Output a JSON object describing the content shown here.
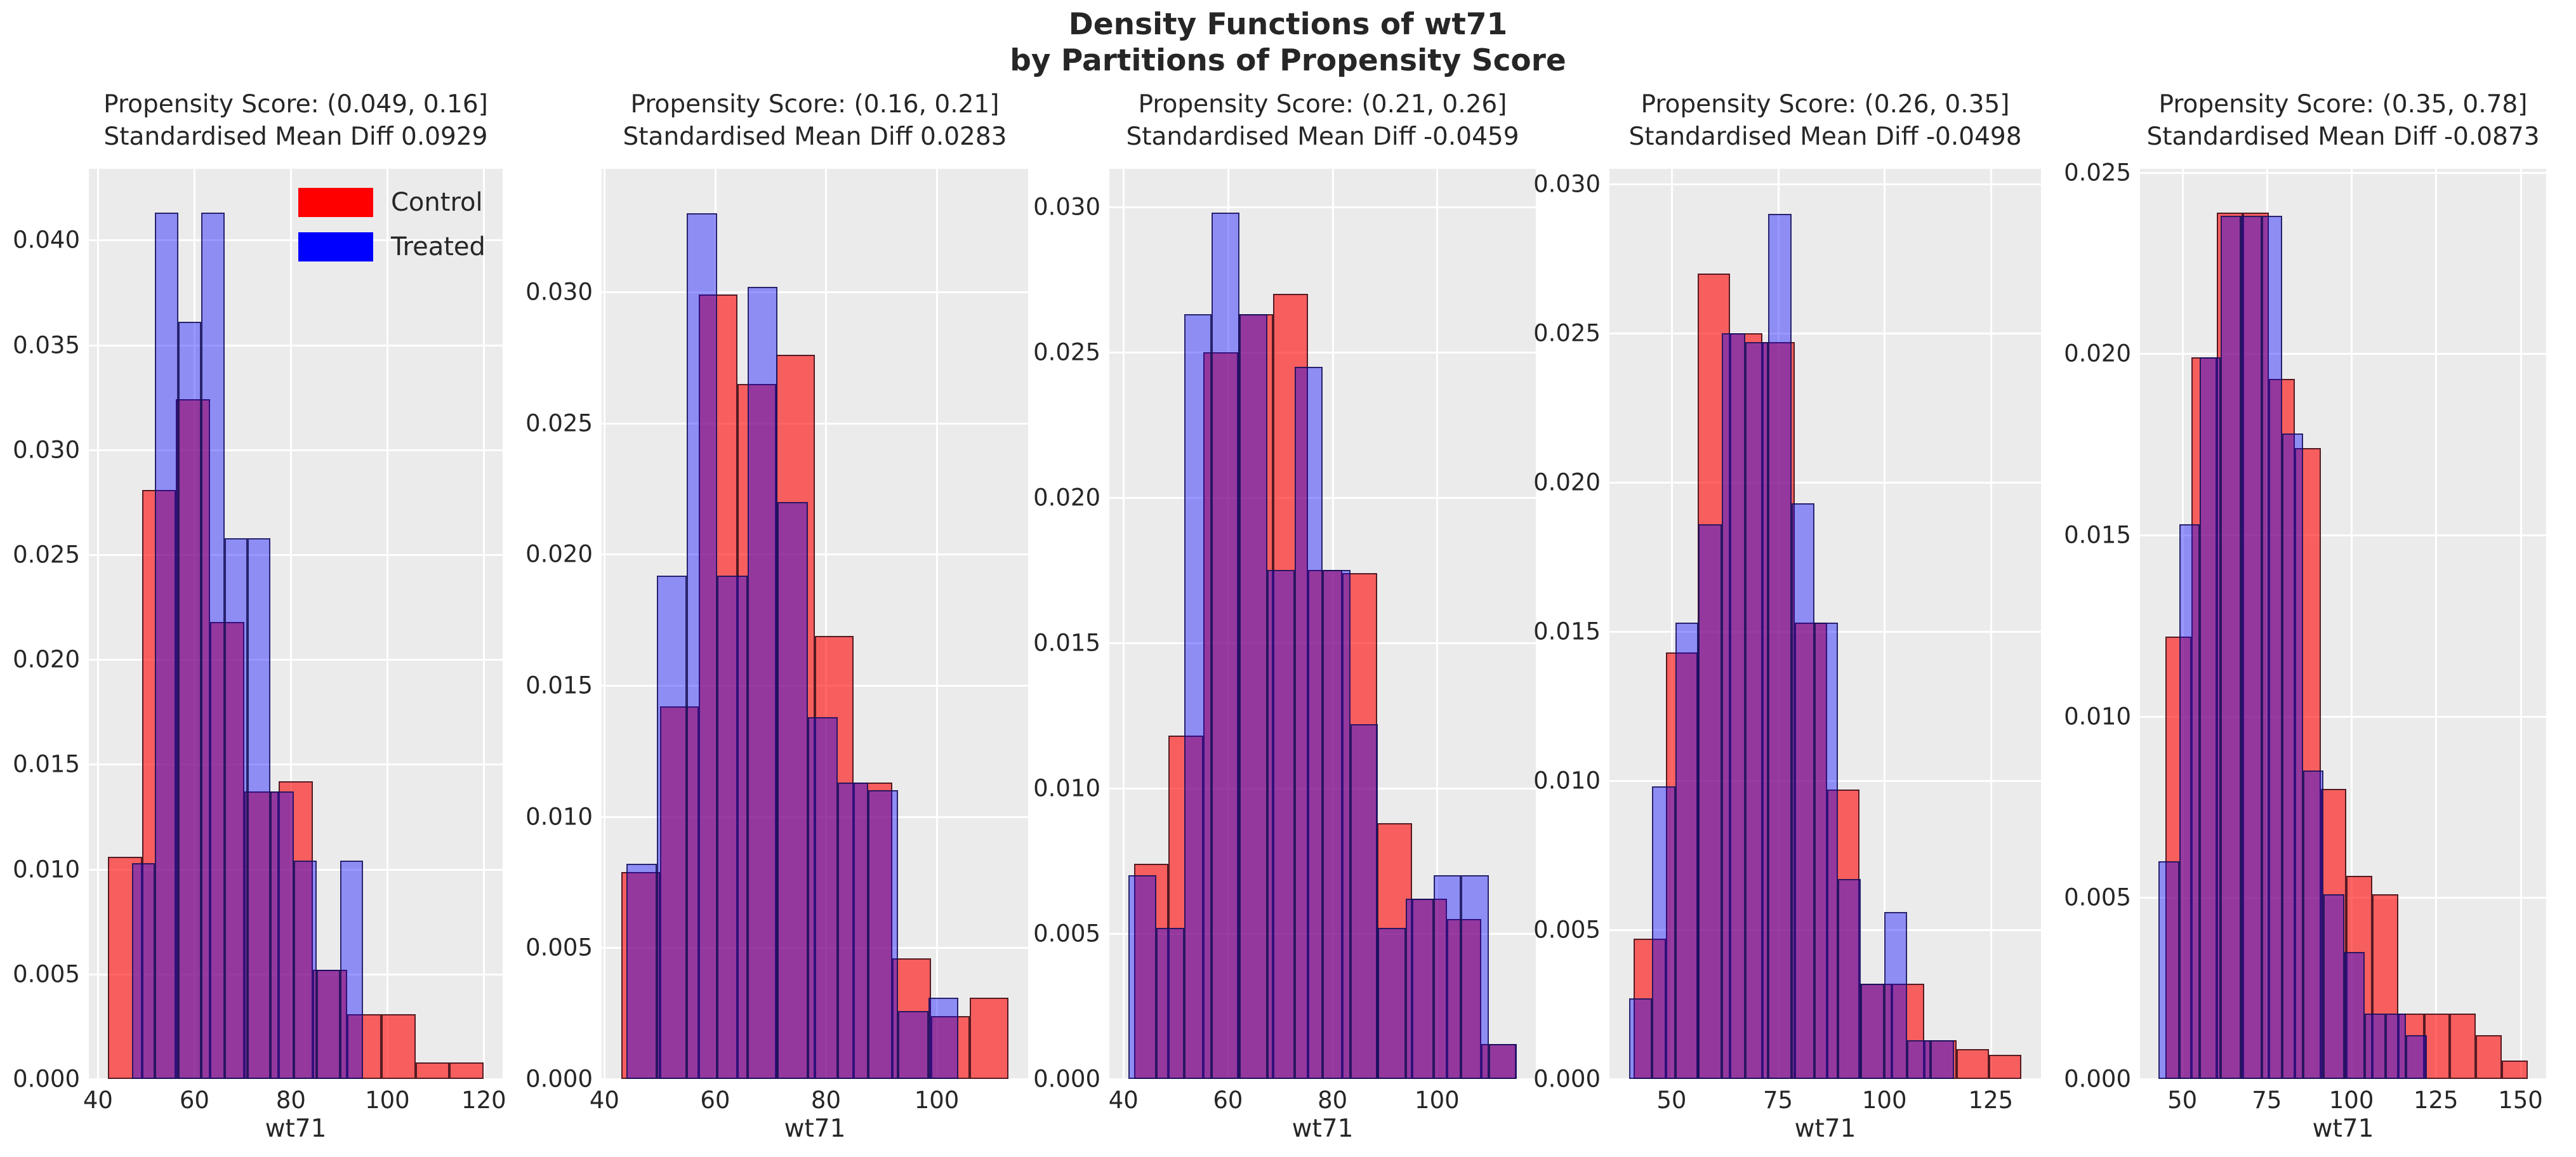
{
  "figure": {
    "title_line1": "Density Functions of wt71",
    "title_line2": "by Partitions of Propensity Score",
    "background": "#ffffff",
    "axes_background": "#ebebeb",
    "grid_color": "#ffffff",
    "text_color": "#262626"
  },
  "legend": {
    "items": [
      {
        "label": "Control",
        "color": "#ff0000"
      },
      {
        "label": "Treated",
        "color": "#0000ff"
      }
    ]
  },
  "chart_data": [
    {
      "type": "bar",
      "subtype": "overlaid-density-histogram",
      "title_line1": "Propensity Score: (0.049, 0.16]",
      "title_line2": "Standardised Mean Diff 0.0929",
      "xlabel": "wt71",
      "xlim": [
        38.1,
        123.9
      ],
      "ylim": [
        0,
        0.0434
      ],
      "xticks": [
        40,
        60,
        80,
        100,
        120
      ],
      "yticks": [
        0.0,
        0.005,
        0.01,
        0.015,
        0.02,
        0.025,
        0.03,
        0.035,
        0.04
      ],
      "grid": true,
      "legend_position": "upper-right-inside",
      "series": [
        {
          "name": "Control",
          "color": "#ff0000",
          "bin_start": 42,
          "bin_width": 7.0909,
          "densities": [
            0.0106,
            0.0281,
            0.0324,
            0.0218,
            0.0137,
            0.0142,
            0.0052,
            0.0031,
            0.0031,
            0.0008,
            0.0008
          ]
        },
        {
          "name": "Treated",
          "color": "#0000ff",
          "bin_start": 47,
          "bin_width": 4.8,
          "densities": [
            0.0103,
            0.0413,
            0.0361,
            0.0413,
            0.0258,
            0.0258,
            0.0137,
            0.0104,
            0.0052,
            0.0104
          ]
        }
      ]
    },
    {
      "type": "bar",
      "subtype": "overlaid-density-histogram",
      "title_line1": "Propensity Score: (0.16, 0.21]",
      "title_line2": "Standardised Mean Diff 0.0283",
      "xlabel": "wt71",
      "xlim": [
        39.5,
        116.5
      ],
      "ylim": [
        0,
        0.0347
      ],
      "xticks": [
        40,
        60,
        80,
        100
      ],
      "yticks": [
        0.0,
        0.005,
        0.01,
        0.015,
        0.02,
        0.025,
        0.03
      ],
      "grid": true,
      "series": [
        {
          "name": "Control",
          "color": "#ff0000",
          "bin_start": 43,
          "bin_width": 7.0,
          "densities": [
            0.0079,
            0.0142,
            0.0299,
            0.0265,
            0.0276,
            0.0169,
            0.0113,
            0.0046,
            0.0024,
            0.0031
          ]
        },
        {
          "name": "Treated",
          "color": "#0000ff",
          "bin_start": 44,
          "bin_width": 5.45,
          "densities": [
            0.0082,
            0.0192,
            0.033,
            0.0192,
            0.0302,
            0.022,
            0.0138,
            0.0113,
            0.011,
            0.0026,
            0.0031
          ]
        }
      ]
    },
    {
      "type": "bar",
      "subtype": "overlaid-density-histogram",
      "title_line1": "Propensity Score: (0.21, 0.26]",
      "title_line2": "Standardised Mean Diff -0.0459",
      "xlabel": "wt71",
      "xlim": [
        37.3,
        118.9
      ],
      "ylim": [
        0,
        0.0313
      ],
      "xticks": [
        40,
        60,
        80,
        100
      ],
      "yticks": [
        0.0,
        0.005,
        0.01,
        0.015,
        0.02,
        0.025,
        0.03
      ],
      "grid": true,
      "series": [
        {
          "name": "Control",
          "color": "#ff0000",
          "bin_start": 42,
          "bin_width": 6.65,
          "densities": [
            0.0074,
            0.0118,
            0.025,
            0.0263,
            0.027,
            0.0175,
            0.0174,
            0.0088,
            0.0062,
            0.0055,
            0.0012
          ]
        },
        {
          "name": "Treated",
          "color": "#0000ff",
          "bin_start": 41,
          "bin_width": 5.3,
          "densities": [
            0.007,
            0.0052,
            0.0263,
            0.0298,
            0.0263,
            0.0175,
            0.0245,
            0.0175,
            0.0122,
            0.0052,
            0.0062,
            0.007,
            0.007,
            0.0012
          ]
        }
      ]
    },
    {
      "type": "bar",
      "subtype": "overlaid-density-histogram",
      "title_line1": "Propensity Score: (0.26, 0.35]",
      "title_line2": "Standardised Mean Diff -0.0498",
      "xlabel": "wt71",
      "xlim": [
        35.4,
        136.8
      ],
      "ylim": [
        0,
        0.0305
      ],
      "xticks": [
        50,
        75,
        100,
        125
      ],
      "yticks": [
        0.0,
        0.005,
        0.01,
        0.015,
        0.02,
        0.025,
        0.03
      ],
      "grid": true,
      "series": [
        {
          "name": "Control",
          "color": "#ff0000",
          "bin_start": 41,
          "bin_width": 7.6,
          "densities": [
            0.0047,
            0.0143,
            0.027,
            0.025,
            0.0247,
            0.0153,
            0.0097,
            0.0032,
            0.0032,
            0.0013,
            0.001,
            0.0008
          ]
        },
        {
          "name": "Treated",
          "color": "#0000ff",
          "bin_start": 40,
          "bin_width": 5.45,
          "densities": [
            0.0027,
            0.0098,
            0.0153,
            0.0186,
            0.025,
            0.0247,
            0.029,
            0.0193,
            0.0153,
            0.0067,
            0.0032,
            0.0056,
            0.0013,
            0.0013
          ]
        }
      ]
    },
    {
      "type": "bar",
      "subtype": "overlaid-density-histogram",
      "title_line1": "Propensity Score: (0.35, 0.78]",
      "title_line2": "Standardised Mean Diff -0.0873",
      "xlabel": "wt71",
      "xlim": [
        37.5,
        157.6
      ],
      "ylim": [
        0,
        0.0251
      ],
      "xticks": [
        50,
        75,
        100,
        125,
        150
      ],
      "yticks": [
        0.0,
        0.005,
        0.01,
        0.015,
        0.02,
        0.025
      ],
      "grid": true,
      "series": [
        {
          "name": "Control",
          "color": "#ff0000",
          "bin_start": 45,
          "bin_width": 7.65,
          "densities": [
            0.0122,
            0.0199,
            0.0239,
            0.0239,
            0.0193,
            0.0174,
            0.008,
            0.0056,
            0.0051,
            0.0018,
            0.0018,
            0.0018,
            0.0012,
            0.0005
          ]
        },
        {
          "name": "Treated",
          "color": "#0000ff",
          "bin_start": 43,
          "bin_width": 6.1,
          "densities": [
            0.006,
            0.0153,
            0.0199,
            0.0238,
            0.0238,
            0.0238,
            0.0178,
            0.0085,
            0.0051,
            0.0035,
            0.0018,
            0.0018,
            0.0012
          ]
        }
      ]
    }
  ]
}
